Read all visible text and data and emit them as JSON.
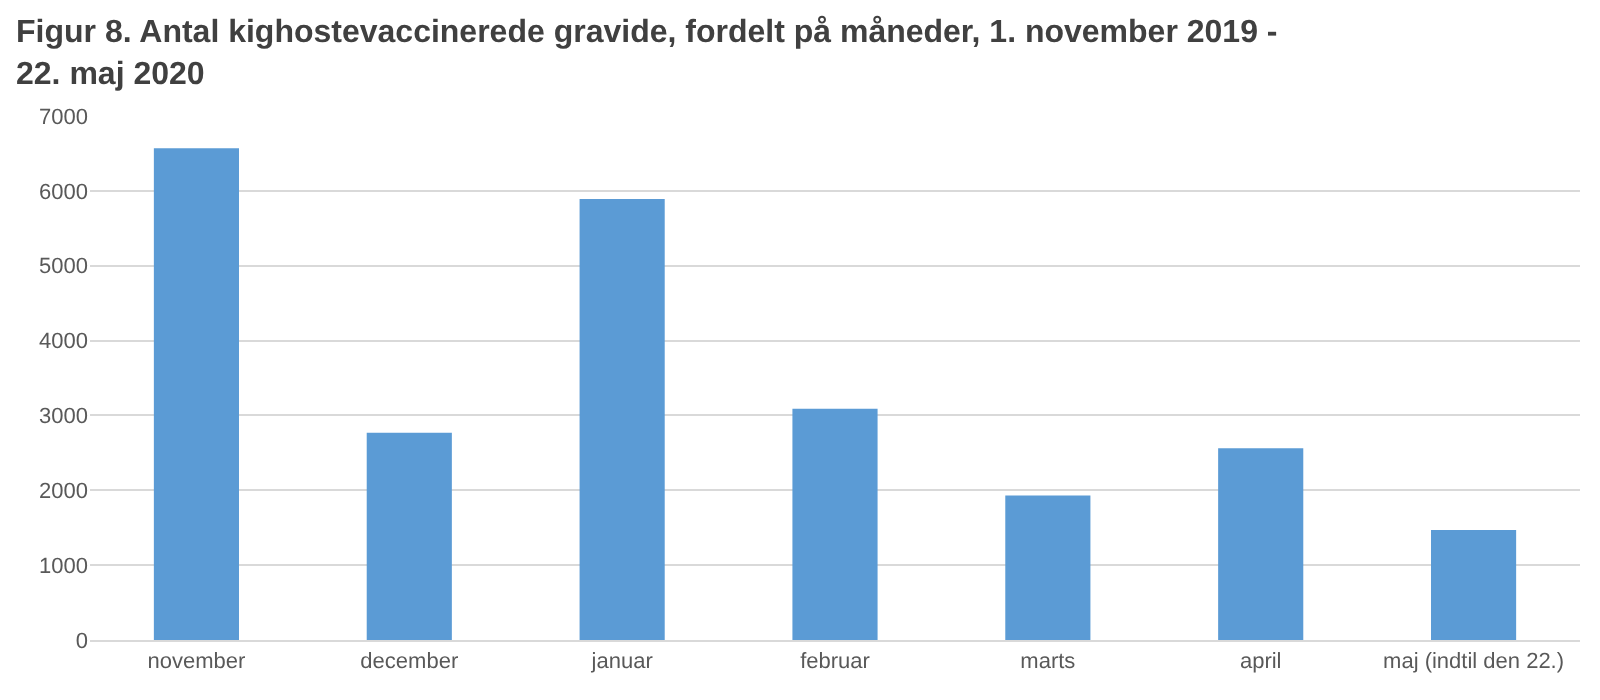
{
  "chart_data": {
    "type": "bar",
    "title": "Figur 8. Antal kighostevaccinerede gravide, fordelt på måneder, 1. november 2019 - 22. maj 2020",
    "categories": [
      "november",
      "december",
      "januar",
      "februar",
      "marts",
      "april",
      "maj (indtil den 22.)"
    ],
    "values": [
      6570,
      2770,
      5890,
      3090,
      1930,
      2560,
      1470
    ],
    "color": "#5b9bd5",
    "ylim": [
      0,
      7000
    ],
    "yticks": [
      0,
      1000,
      2000,
      3000,
      4000,
      5000,
      6000,
      7000
    ],
    "grid": "y"
  }
}
